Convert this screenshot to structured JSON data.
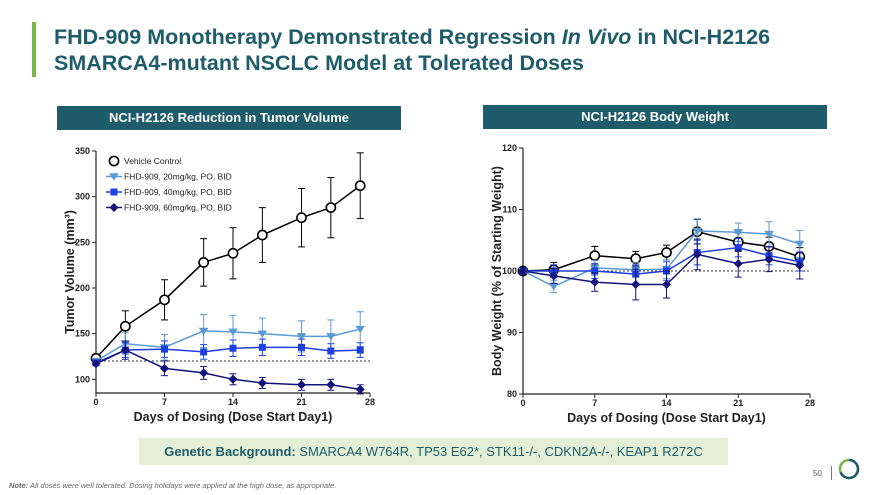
{
  "title": {
    "part1": "FHD-909 Monotherapy Demonstrated Regression ",
    "part2": "In Vivo",
    "part3": " in NCI-H2126",
    "line2": "SMARCA4-mutant NSCLC Model at Tolerated Doses"
  },
  "panels": {
    "left_header": "NCI-H2126 Reduction in Tumor Volume",
    "right_header": "NCI-H2126 Body Weight"
  },
  "genetic": {
    "label": "Genetic Background:",
    "value": " SMARCA4 W764R, TP53 E62*, STK11-/-, CDKN2A-/-, KEAP1 R272C"
  },
  "note": {
    "label": "Note:",
    "text": " All doses were well tolerated. Dosing holidays were applied at the high dose, as appropriate."
  },
  "page_number": "50",
  "colors": {
    "teal": "#1f5c6b",
    "green_accent": "#79b846",
    "vehicle": "#000000",
    "dose20": "#5b9bd5",
    "dose40": "#1f3fe0",
    "dose60": "#12127a"
  },
  "chart_data": [
    {
      "type": "line",
      "title": "NCI-H2126 Reduction in Tumor Volume",
      "xlabel": "Days of Dosing (Dose Start Day1)",
      "ylabel": "Tumor Volume (mm³)",
      "xlim": [
        0,
        28
      ],
      "ylim": [
        85,
        350
      ],
      "xticks": [
        0,
        7,
        14,
        21,
        28
      ],
      "yticks": [
        100,
        150,
        200,
        250,
        300,
        350
      ],
      "reference_line": 120,
      "legend_position": "top-left",
      "series": [
        {
          "name": "Vehicle Control",
          "marker": "open-circle",
          "color": "#000000",
          "x": [
            0,
            3,
            7,
            11,
            14,
            17,
            21,
            24,
            27
          ],
          "y": [
            123,
            158,
            187,
            228,
            238,
            258,
            277,
            288,
            312
          ],
          "err": [
            0,
            17,
            22,
            26,
            28,
            30,
            32,
            33,
            36
          ]
        },
        {
          "name": "FHD-909, 20mg/kg, PO, BID",
          "marker": "triangle-down",
          "color": "#5b9bd5",
          "x": [
            0,
            3,
            7,
            11,
            14,
            17,
            21,
            24,
            27
          ],
          "y": [
            120,
            139,
            135,
            153,
            152,
            150,
            147,
            147,
            155
          ],
          "err": [
            0,
            12,
            14,
            18,
            18,
            17,
            17,
            18,
            19
          ]
        },
        {
          "name": "FHD-909, 40mg/kg, PO, BID",
          "marker": "square",
          "color": "#1f3fe0",
          "x": [
            0,
            3,
            7,
            11,
            14,
            17,
            21,
            24,
            27
          ],
          "y": [
            118,
            132,
            133,
            130,
            134,
            135,
            135,
            131,
            132
          ],
          "err": [
            0,
            8,
            9,
            8,
            9,
            9,
            9,
            8,
            8
          ]
        },
        {
          "name": "FHD-909, 60mg/kg, PO, BID",
          "marker": "diamond",
          "color": "#12127a",
          "x": [
            0,
            3,
            7,
            11,
            14,
            17,
            21,
            24,
            27
          ],
          "y": [
            117,
            132,
            112,
            107,
            100,
            96,
            94,
            94,
            89
          ],
          "err": [
            0,
            10,
            8,
            7,
            6,
            6,
            6,
            6,
            5
          ]
        }
      ]
    },
    {
      "type": "line",
      "title": "NCI-H2126 Body Weight",
      "xlabel": "Days of Dosing (Dose Start Day1)",
      "ylabel": "Body Weight (% of Starting Weight)",
      "xlim": [
        0,
        28
      ],
      "ylim": [
        80,
        120
      ],
      "xticks": [
        0,
        7,
        14,
        21,
        28
      ],
      "yticks": [
        80,
        90,
        100,
        110,
        120
      ],
      "reference_line": 100,
      "series": [
        {
          "name": "Vehicle Control",
          "marker": "open-circle",
          "color": "#000000",
          "x": [
            0,
            3,
            7,
            11,
            14,
            17,
            21,
            24,
            27
          ],
          "y": [
            100,
            100.2,
            102.5,
            102,
            103,
            106.4,
            104.7,
            104,
            102.3
          ],
          "err": [
            0,
            1.2,
            1.5,
            1.2,
            1.2,
            2,
            1.5,
            1.5,
            1.5
          ]
        },
        {
          "name": "FHD-909, 20mg/kg, PO, BID",
          "marker": "triangle-down",
          "color": "#5b9bd5",
          "x": [
            0,
            3,
            7,
            11,
            14,
            17,
            21,
            24,
            27
          ],
          "y": [
            100,
            97.5,
            100.5,
            100.2,
            100.3,
            106.5,
            106.3,
            106,
            104.4
          ],
          "err": [
            0,
            1,
            1.2,
            1.2,
            1.5,
            2,
            1.5,
            2,
            2.2
          ]
        },
        {
          "name": "FHD-909, 40mg/kg, PO, BID",
          "marker": "square",
          "color": "#1f3fe0",
          "x": [
            0,
            3,
            7,
            11,
            14,
            17,
            21,
            24,
            27
          ],
          "y": [
            100,
            100,
            100,
            99.5,
            100,
            103,
            103.8,
            102.5,
            101.5
          ],
          "err": [
            0,
            1,
            1.2,
            1.5,
            1.5,
            2,
            1.5,
            1.5,
            1.5
          ]
        },
        {
          "name": "FHD-909, 60mg/kg, PO, BID",
          "marker": "diamond",
          "color": "#12127a",
          "x": [
            0,
            3,
            7,
            11,
            14,
            17,
            21,
            24,
            27
          ],
          "y": [
            100,
            99.2,
            98.2,
            97.8,
            97.8,
            102.7,
            101.2,
            101.9,
            100.9
          ],
          "err": [
            0,
            1.2,
            1.5,
            2.5,
            2.2,
            2.5,
            2.2,
            2,
            2.2
          ]
        }
      ]
    }
  ]
}
